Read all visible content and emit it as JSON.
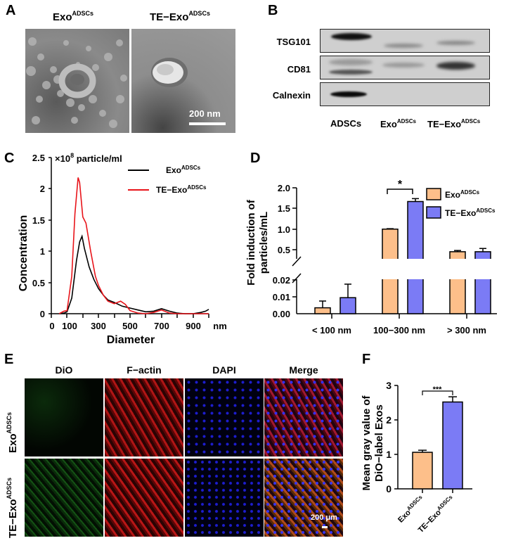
{
  "panels": {
    "A": {
      "label": "A",
      "images": [
        {
          "title_main": "Exo",
          "title_sup": "ADSCs"
        },
        {
          "title_main": "TE−Exo",
          "title_sup": "ADSCs"
        }
      ],
      "scale_bar": "200 nm"
    },
    "B": {
      "label": "B",
      "rows": [
        "TSG101",
        "CD81",
        "Calnexin"
      ],
      "lanes": [
        {
          "main": "ADSCs",
          "sup": ""
        },
        {
          "main": "Exo",
          "sup": "ADSCs"
        },
        {
          "main": "TE−Exo",
          "sup": "ADSCs"
        }
      ]
    },
    "C": {
      "label": "C"
    },
    "D": {
      "label": "D"
    },
    "E": {
      "label": "E",
      "columns": [
        "DiO",
        "F−actin",
        "DAPI",
        "Merge"
      ],
      "rows": [
        {
          "main": "Exo",
          "sup": "ADSCs"
        },
        {
          "main": "TE−Exo",
          "sup": "ADSCs"
        }
      ],
      "scale_bar": "200 μm"
    },
    "F": {
      "label": "F"
    }
  },
  "colors": {
    "exo": "#FDBF8A",
    "te_exo": "#7B7BF5",
    "line_exo": "#000000",
    "line_te_exo": "#E8141A"
  },
  "chart_data": [
    {
      "panel": "C",
      "type": "line",
      "title": "",
      "unit_label": "×10^8 particle/ml",
      "xlabel": "Diameter",
      "x_unit": "nm",
      "ylabel": "Concentration",
      "xlim": [
        0,
        1000
      ],
      "ylim": [
        0,
        2.5
      ],
      "xticks": [
        0,
        100,
        300,
        500,
        700,
        900
      ],
      "yticks": [
        0,
        0.5,
        1,
        1.5,
        2,
        2.5
      ],
      "legend_position": "upper right",
      "series": [
        {
          "name": "Exo^ADSCs",
          "color": "#000000",
          "x": [
            50,
            80,
            100,
            130,
            160,
            180,
            195,
            210,
            240,
            270,
            300,
            330,
            360,
            400,
            450,
            500,
            550,
            600,
            650,
            700,
            750,
            800,
            850,
            900,
            950,
            980,
            1000
          ],
          "y": [
            0,
            0.01,
            0.03,
            0.25,
            0.85,
            1.15,
            1.24,
            1.05,
            0.75,
            0.55,
            0.4,
            0.3,
            0.22,
            0.18,
            0.12,
            0.09,
            0.06,
            0.03,
            0.04,
            0.08,
            0.04,
            0.01,
            0.0,
            0.0,
            0.02,
            0.04,
            0.07
          ]
        },
        {
          "name": "TE−Exo^ADSCs",
          "color": "#E8141A",
          "x": [
            50,
            80,
            100,
            130,
            150,
            170,
            180,
            200,
            220,
            250,
            280,
            300,
            330,
            360,
            400,
            440,
            470,
            500,
            550,
            600,
            650,
            700,
            750,
            800,
            900,
            1000
          ],
          "y": [
            0,
            0.04,
            0.05,
            0.6,
            1.6,
            2.18,
            2.1,
            1.55,
            1.45,
            1.0,
            0.6,
            0.45,
            0.3,
            0.2,
            0.16,
            0.2,
            0.15,
            0.05,
            0.01,
            0.0,
            0.02,
            0.06,
            0.01,
            0.0,
            0.0,
            0.0
          ]
        }
      ]
    },
    {
      "panel": "D",
      "type": "bar",
      "title": "",
      "xlabel": "",
      "ylabel": "Fold induction of particles/mL",
      "categories": [
        "< 100 nm",
        "100−300 nm",
        "> 300 nm"
      ],
      "y_axis_break": {
        "lower": [
          0,
          0.02
        ],
        "upper": [
          0.5,
          2.0
        ]
      },
      "lower_yticks": [
        "0.00",
        "0.01",
        "0.02"
      ],
      "upper_yticks": [
        "0.5",
        "1.0",
        "1.5",
        "2.0"
      ],
      "legend_position": "upper right",
      "series": [
        {
          "name": "Exo^ADSCs",
          "color": "#FDBF8A",
          "values": [
            0.0035,
            1.0,
            0.45
          ],
          "errors": [
            0.004,
            0.01,
            0.03
          ]
        },
        {
          "name": "TE−Exo^ADSCs",
          "color": "#7B7BF5",
          "values": [
            0.0095,
            1.67,
            0.45
          ],
          "errors": [
            0.008,
            0.07,
            0.08
          ]
        }
      ],
      "annotations": [
        {
          "text": "*",
          "between": [
            "Exo^ADSCs",
            "TE−Exo^ADSCs"
          ],
          "category": "100−300 nm"
        }
      ]
    },
    {
      "panel": "F",
      "type": "bar",
      "title": "",
      "xlabel": "",
      "ylabel": "Mean gray value of DiO−label Exos",
      "categories": [
        "Exo^ADSCs",
        "TE−Exo^ADSCs"
      ],
      "values": [
        1.06,
        2.52
      ],
      "errors": [
        0.06,
        0.15
      ],
      "colors": [
        "#FDBF8A",
        "#7B7BF5"
      ],
      "ylim": [
        0,
        3
      ],
      "yticks": [
        0,
        1,
        2,
        3
      ],
      "annotations": [
        {
          "text": "***",
          "between": [
            "Exo^ADSCs",
            "TE−Exo^ADSCs"
          ]
        }
      ]
    }
  ]
}
